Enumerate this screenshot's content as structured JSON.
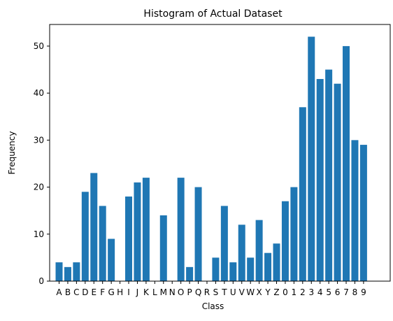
{
  "chart_data": {
    "type": "bar",
    "title": "Histogram of Actual Dataset",
    "xlabel": "Class",
    "ylabel": "Frequency",
    "categories": [
      "A",
      "B",
      "C",
      "D",
      "E",
      "F",
      "G",
      "H",
      "I",
      "J",
      "K",
      "L",
      "M",
      "N",
      "O",
      "P",
      "Q",
      "R",
      "S",
      "T",
      "U",
      "V",
      "W",
      "X",
      "Y",
      "Z",
      "0",
      "1",
      "2",
      "3",
      "4",
      "5",
      "6",
      "7",
      "8",
      "9"
    ],
    "values": [
      4,
      3,
      4,
      19,
      23,
      16,
      9,
      0,
      18,
      21,
      22,
      0,
      14,
      0,
      22,
      3,
      20,
      0,
      5,
      16,
      4,
      12,
      5,
      13,
      6,
      8,
      17,
      20,
      37,
      52,
      43,
      45,
      42,
      50,
      30,
      29
    ],
    "ylim": [
      0,
      54.6
    ],
    "yticks": [
      0,
      10,
      20,
      30,
      40,
      50
    ],
    "bar_color": "#1f77b4",
    "grid": false,
    "legend": "none"
  }
}
